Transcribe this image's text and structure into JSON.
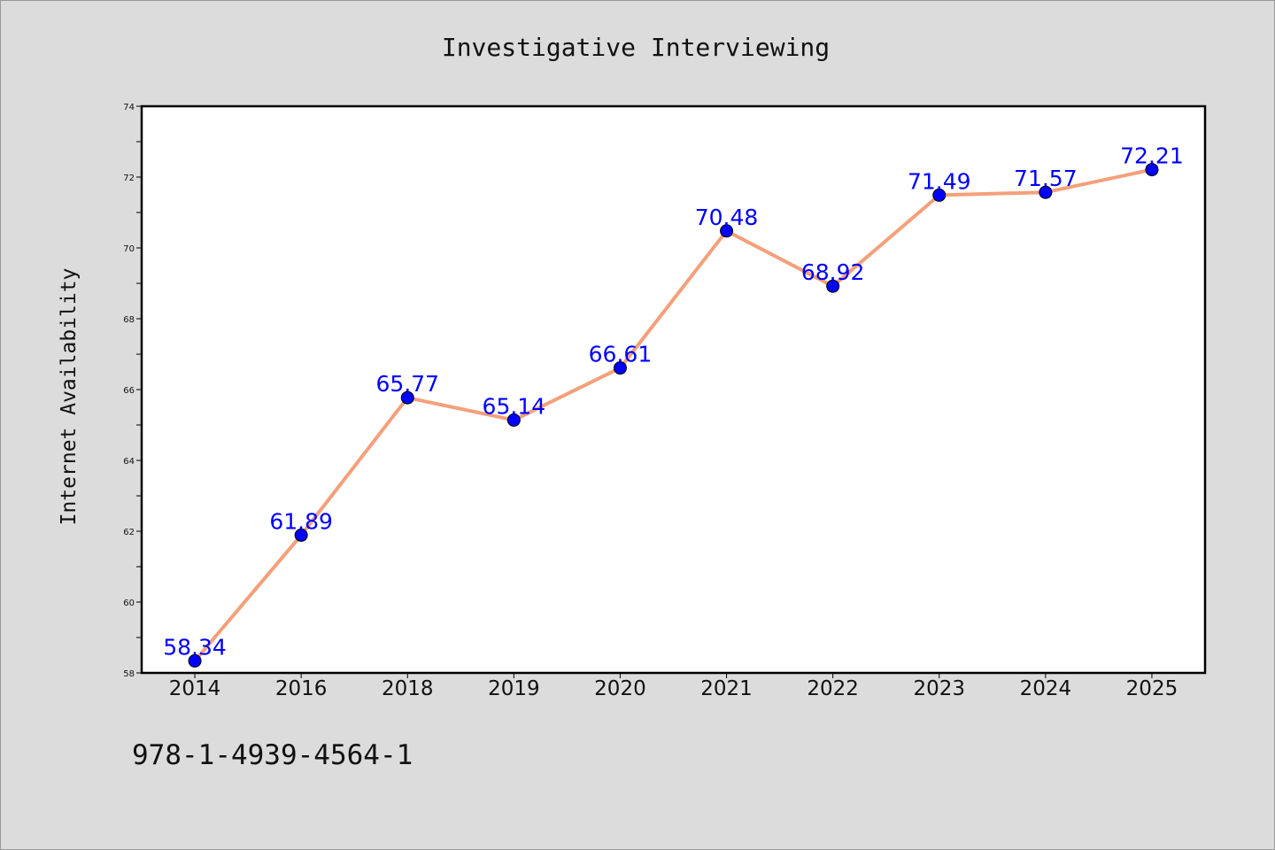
{
  "chart_data": {
    "type": "line",
    "title": "Investigative Interviewing",
    "xlabel": "",
    "ylabel": "Internet Availability",
    "categories": [
      "2014",
      "2016",
      "2018",
      "2019",
      "2020",
      "2021",
      "2022",
      "2023",
      "2024",
      "2025"
    ],
    "series": [
      {
        "values": [
          58.34,
          61.89,
          65.77,
          65.14,
          66.61,
          70.48,
          68.92,
          71.49,
          71.57,
          72.21
        ],
        "line_color": "#f4a07a",
        "marker_color": "#0000ff"
      }
    ],
    "data_labels": [
      "58.34",
      "61.89",
      "65.77",
      "65.14",
      "66.61",
      "70.48",
      "68.92",
      "71.49",
      "71.57",
      "72.21"
    ],
    "ylim": [
      58,
      74
    ],
    "yticks": [
      58,
      60,
      62,
      64,
      66,
      68,
      70,
      72,
      74
    ],
    "grid": false,
    "legend": "none"
  },
  "footer": {
    "isbn": "978-1-4939-4564-1"
  }
}
